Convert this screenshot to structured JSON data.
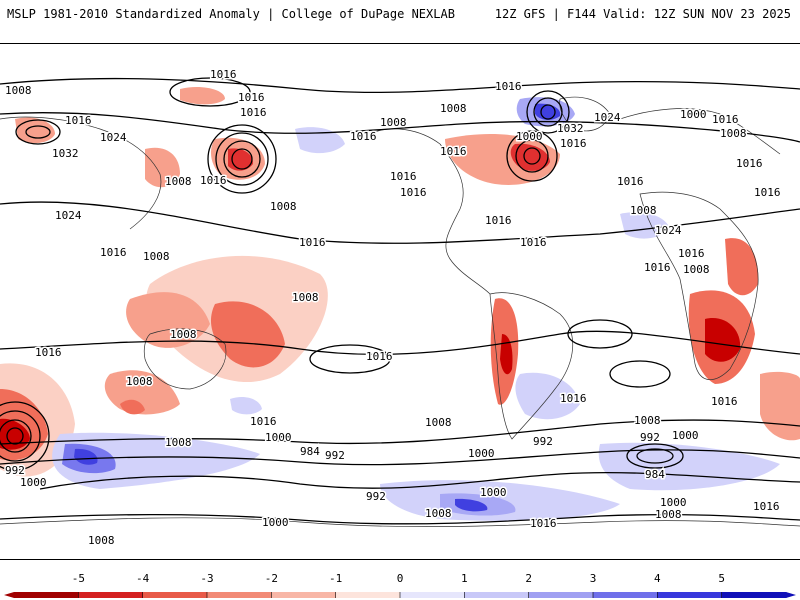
{
  "header": {
    "left_title": "MSLP 1981-2010 Standardized Anomaly | College of DuPage NEXLAB",
    "right_title": "12Z GFS | F144 Valid: 12Z SUN NOV 23 2025"
  },
  "map": {
    "type": "global-mslp-anomaly",
    "isobar_labels": [
      "1016",
      "1008",
      "1016",
      "1024",
      "1032",
      "1016",
      "1016",
      "1008",
      "1016",
      "1024",
      "1016",
      "1008",
      "1016",
      "1016",
      "1016",
      "1008",
      "1016",
      "1008",
      "1016",
      "1000",
      "1016",
      "1032",
      "1024",
      "1016",
      "1000",
      "1016",
      "1008",
      "1016",
      "1008",
      "1016",
      "1016",
      "1016",
      "1024",
      "1016",
      "1008",
      "1008",
      "1008",
      "1016",
      "1016",
      "1008",
      "1016",
      "1016",
      "1008",
      "1016",
      "1016",
      "992",
      "1000",
      "1008",
      "1000",
      "992",
      "1008",
      "984",
      "992",
      "1000",
      "992",
      "984",
      "992",
      "1000",
      "1008",
      "1016",
      "1000",
      "1008",
      "1000",
      "1016",
      "1008",
      "1000",
      "1016",
      "1008"
    ],
    "colors": {
      "strong_neg": "#c80000",
      "neg4": "#e03030",
      "neg3": "#f06e5a",
      "neg2": "#f7a08c",
      "neg1": "#fbd0c4",
      "pos1": "#d2d2fa",
      "pos2": "#a8a8f5",
      "pos3": "#7878ee",
      "pos4": "#4040e0",
      "strong_pos": "#1010c8",
      "isobar": "#000000",
      "coast": "#333333"
    }
  },
  "colorbar": {
    "ticks": [
      "-5",
      "-4",
      "-3",
      "-2",
      "-1",
      "0",
      "1",
      "2",
      "3",
      "4",
      "5"
    ],
    "colors": [
      "#a00000",
      "#d42020",
      "#e85a48",
      "#f28a76",
      "#f8b6a6",
      "#fde4dc",
      "#e6e6fc",
      "#c8c8f8",
      "#a0a0f2",
      "#7070ea",
      "#3838dc",
      "#1010b8"
    ]
  }
}
